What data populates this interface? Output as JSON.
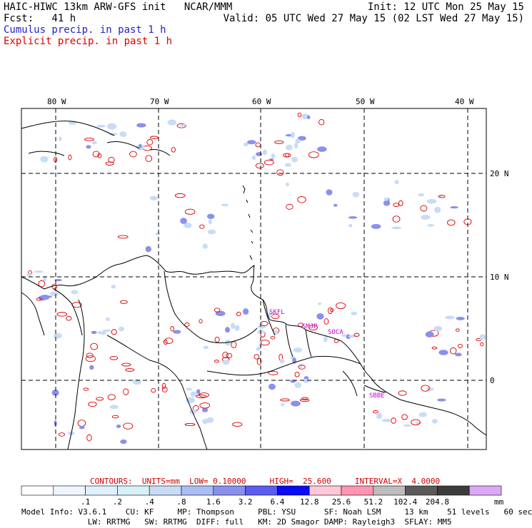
{
  "header": {
    "line1_left": "HAIC-HIWC 13km ARW-GFS init   NCAR/MMM",
    "line1_right": "Init: 12 UTC Mon 25 May 15",
    "line2_left": "Fcst:   41 h",
    "line2_right": "Valid: 05 UTC Wed 27 May 15 (02 LST Wed 27 May 15)",
    "legend_cumulus": "Cumulus precip. in past 1 h",
    "legend_explicit": "Explicit precip. in past 1 h"
  },
  "map": {
    "lon_labels": [
      "80 W",
      "70 W",
      "60 W",
      "50 W",
      "40 W"
    ],
    "lat_labels": [
      "20 N",
      "10 N",
      "0"
    ],
    "stations": [
      "SKFL",
      "SMJP",
      "SOCA",
      "SBBE"
    ]
  },
  "contours": {
    "label": "CONTOURS:  UNITS=mm  LOW= 0.10000     HIGH=  25.600     INTERVAL=X  4.0000"
  },
  "colorbar": {
    "ticks": [
      ".1",
      ".2",
      ".4",
      ".8",
      "1.6",
      "3.2",
      "6.4",
      "12.8",
      "25.6",
      "51.2",
      "102.4",
      "204.8"
    ],
    "unit": "mm",
    "colors": [
      "#ffffff",
      "#f0f6ff",
      "#e0f0ff",
      "#d8f0f8",
      "#c8dcf8",
      "#aabdf5",
      "#8a90ee",
      "#5a5cf0",
      "#0a0af5",
      "#ffc8d8",
      "#ff96b4",
      "#bdbdbd",
      "#5a5a5a",
      "#3c3c3c",
      "#dca8f5"
    ]
  },
  "footer": {
    "line1": "Model Info: V3.6.1    CU: KF     MP: Thompson     PBL: YSU      SF: Noah LSM     13 km    51 levels   60 sec",
    "line2": "              LW: RRTMG   SW: RRTMG  DIFF: full   KM: 2D Smagor DAMP: Rayleigh3  SFLAY: MM5"
  },
  "colors": {
    "cumulus": "#2222cc",
    "explicit": "#dd0000",
    "station": "#cc00cc"
  }
}
